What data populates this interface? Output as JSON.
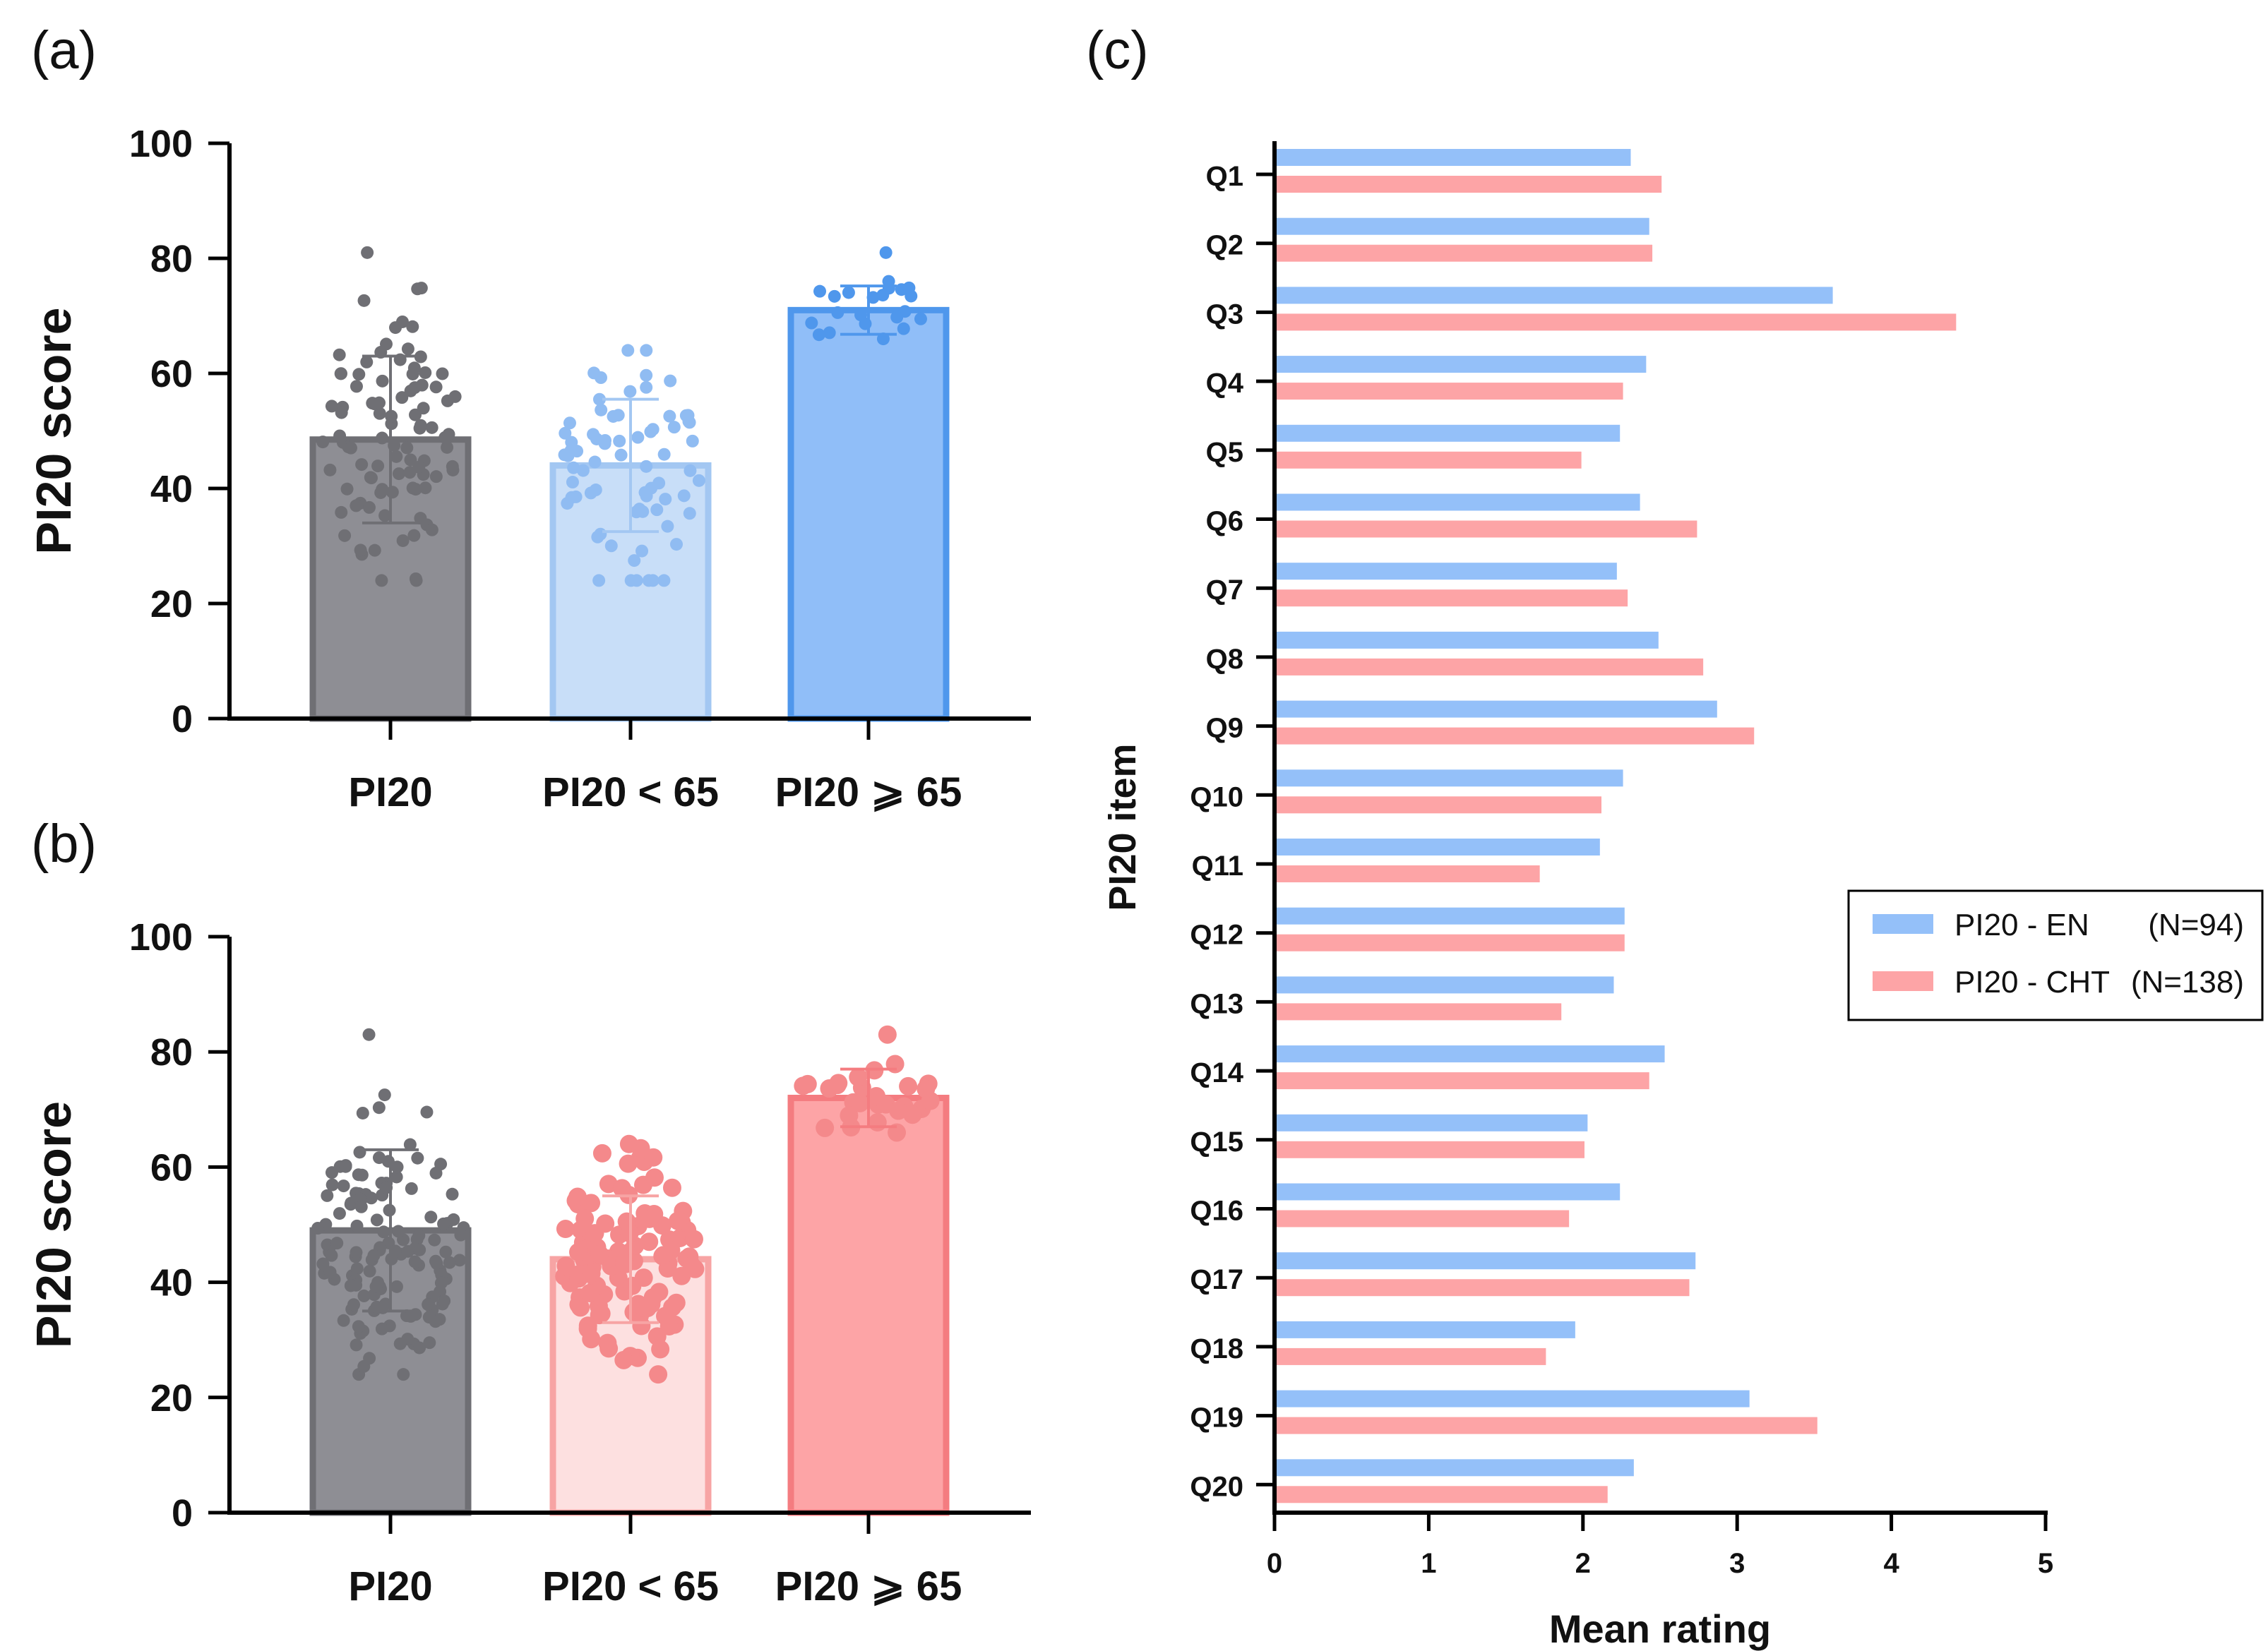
{
  "panels": {
    "a": "(a)",
    "b": "(b)",
    "c": "(c)"
  },
  "colors": {
    "gray": "#8e8e94",
    "gray_edge": "#6f6f74",
    "gray_dot": "#6f6f74",
    "light_blue": "#c8def8",
    "light_blue_edge": "#a3c7f2",
    "blue_dot": "#90bcf2",
    "blue": "#90bef8",
    "blue_edge": "#4f97ec",
    "blue_dot_dark": "#4f97ec",
    "light_pink": "#fde0e0",
    "light_pink_edge": "#f7a4a4",
    "pink_dot": "#f4898b",
    "pink": "#fda4a6",
    "pink_edge": "#f47c80",
    "en_bar": "#94c0f9",
    "cht_bar": "#fda4a6"
  },
  "chart_data": [
    {
      "id": "a",
      "type": "bar",
      "title": "",
      "ylabel": "PI20 score",
      "xlabel": "",
      "ylim": [
        0,
        100
      ],
      "yticks": [
        0,
        20,
        40,
        60,
        80,
        100
      ],
      "categories": [
        "PI20",
        "PI20 < 65",
        "PI20 ⩾ 65"
      ],
      "values": [
        48.5,
        44,
        71
      ],
      "error_sd": [
        14.5,
        11.5,
        4.2
      ],
      "n_dots": [
        94,
        72,
        22
      ],
      "dot_range": [
        [
          24,
          81
        ],
        [
          24,
          64
        ],
        [
          66,
          81
        ]
      ]
    },
    {
      "id": "b",
      "type": "bar",
      "title": "",
      "ylabel": "PI20 score",
      "xlabel": "",
      "ylim": [
        0,
        100
      ],
      "yticks": [
        0,
        20,
        40,
        60,
        80,
        100
      ],
      "categories": [
        "PI20",
        "PI20 < 65",
        "PI20 ⩾ 65"
      ],
      "values": [
        49,
        44,
        72
      ],
      "error_sd": [
        14,
        11,
        5
      ],
      "n_dots": [
        138,
        110,
        28
      ],
      "dot_range": [
        [
          24,
          83
        ],
        [
          24,
          64
        ],
        [
          66,
          83
        ]
      ]
    },
    {
      "id": "c",
      "type": "bar",
      "orientation": "horizontal",
      "title": "",
      "xlabel": "Mean rating",
      "ylabel": "PI20 item",
      "xlim": [
        0,
        5
      ],
      "xticks": [
        0,
        1,
        2,
        3,
        4,
        5
      ],
      "categories": [
        "Q1",
        "Q2",
        "Q3",
        "Q4",
        "Q5",
        "Q6",
        "Q7",
        "Q8",
        "Q9",
        "Q10",
        "Q11",
        "Q12",
        "Q13",
        "Q14",
        "Q15",
        "Q16",
        "Q17",
        "Q18",
        "Q19",
        "Q20"
      ],
      "series": [
        {
          "name": "PI20 - EN",
          "n_label": "(N=94)",
          "values": [
            2.31,
            2.43,
            3.62,
            2.41,
            2.24,
            2.37,
            2.22,
            2.49,
            2.87,
            2.26,
            2.11,
            2.27,
            2.2,
            2.53,
            2.03,
            2.24,
            2.73,
            1.95,
            3.08,
            2.33
          ]
        },
        {
          "name": "PI20 - CHT",
          "n_label": "(N=138)",
          "values": [
            2.51,
            2.45,
            4.42,
            2.26,
            1.99,
            2.74,
            2.29,
            2.78,
            3.11,
            2.12,
            1.72,
            2.27,
            1.86,
            2.43,
            2.01,
            1.91,
            2.69,
            1.76,
            3.52,
            2.16
          ]
        }
      ],
      "legend_position": "center-right"
    }
  ]
}
